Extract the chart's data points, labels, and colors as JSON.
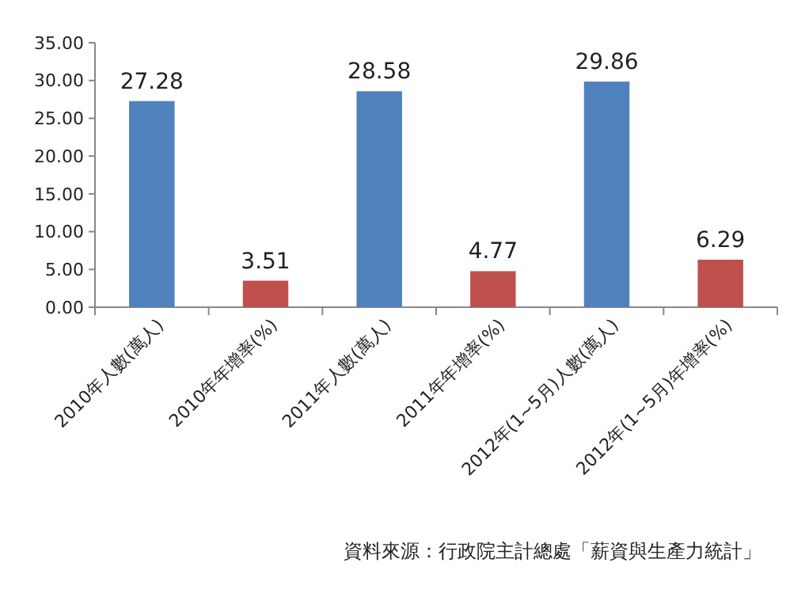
{
  "chart_data": {
    "type": "bar",
    "categories": [
      "2010年人數(萬人)",
      "2010年年增率(%)",
      "2011年人數(萬人)",
      "2011年年增率(%)",
      "2012年(1~5月)人數(萬人)",
      "2012年(1~5月)年增率(%)"
    ],
    "values": [
      27.28,
      3.51,
      28.58,
      4.77,
      29.86,
      6.29
    ],
    "colors": [
      "#4f81bd",
      "#c0504d",
      "#4f81bd",
      "#c0504d",
      "#4f81bd",
      "#c0504d"
    ],
    "ylim": [
      0,
      35
    ],
    "yticks": [
      {
        "value": 0,
        "label": "0.00"
      },
      {
        "value": 5,
        "label": "5.00"
      },
      {
        "value": 10,
        "label": "10.00"
      },
      {
        "value": 15,
        "label": "15.00"
      },
      {
        "value": 20,
        "label": "20.00"
      },
      {
        "value": 25,
        "label": "25.00"
      },
      {
        "value": 30,
        "label": "30.00"
      },
      {
        "value": 35,
        "label": "35.00"
      }
    ],
    "data_labels": true,
    "annotations": [
      "資料來源：行政院主計總處「薪資與生產力統計」"
    ]
  }
}
